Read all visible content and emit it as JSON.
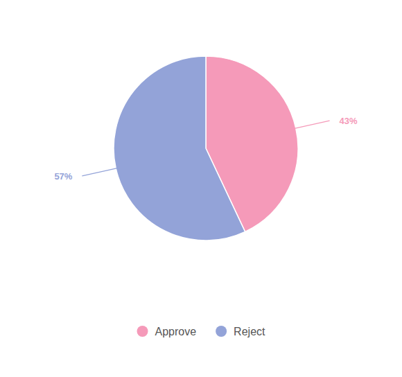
{
  "chart_data": {
    "type": "pie",
    "categories": [
      "Approve",
      "Reject"
    ],
    "values": [
      43,
      57
    ],
    "value_labels": [
      "43%",
      "57%"
    ],
    "colors": [
      "#f59ab9",
      "#93a3d8"
    ],
    "data_labels": true,
    "legend": "bottom"
  }
}
